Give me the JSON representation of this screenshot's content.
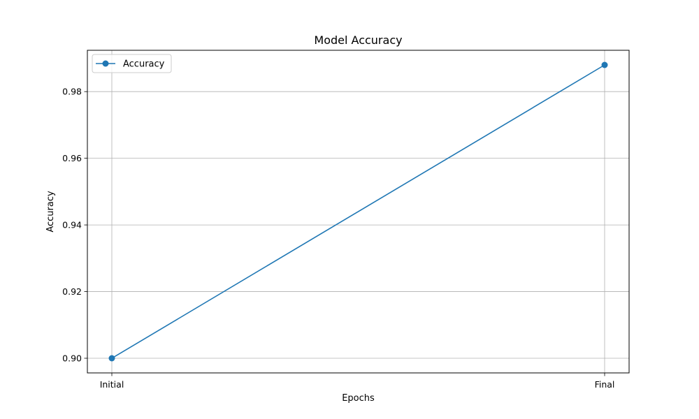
{
  "chart_data": {
    "type": "line",
    "title": "Model Accuracy",
    "xlabel": "Epochs",
    "ylabel": "Accuracy",
    "categories": [
      "Initial",
      "Final"
    ],
    "series": [
      {
        "name": "Accuracy",
        "values": [
          0.9,
          0.988
        ],
        "color": "#1f77b4",
        "marker": "circle"
      }
    ],
    "ylim": [
      0.8956,
      0.9924
    ],
    "yticks": [
      0.9,
      0.92,
      0.94,
      0.96,
      0.98
    ],
    "ytick_labels": [
      "0.90",
      "0.92",
      "0.94",
      "0.96",
      "0.98"
    ],
    "grid": true,
    "legend": {
      "position": "top-left"
    }
  }
}
